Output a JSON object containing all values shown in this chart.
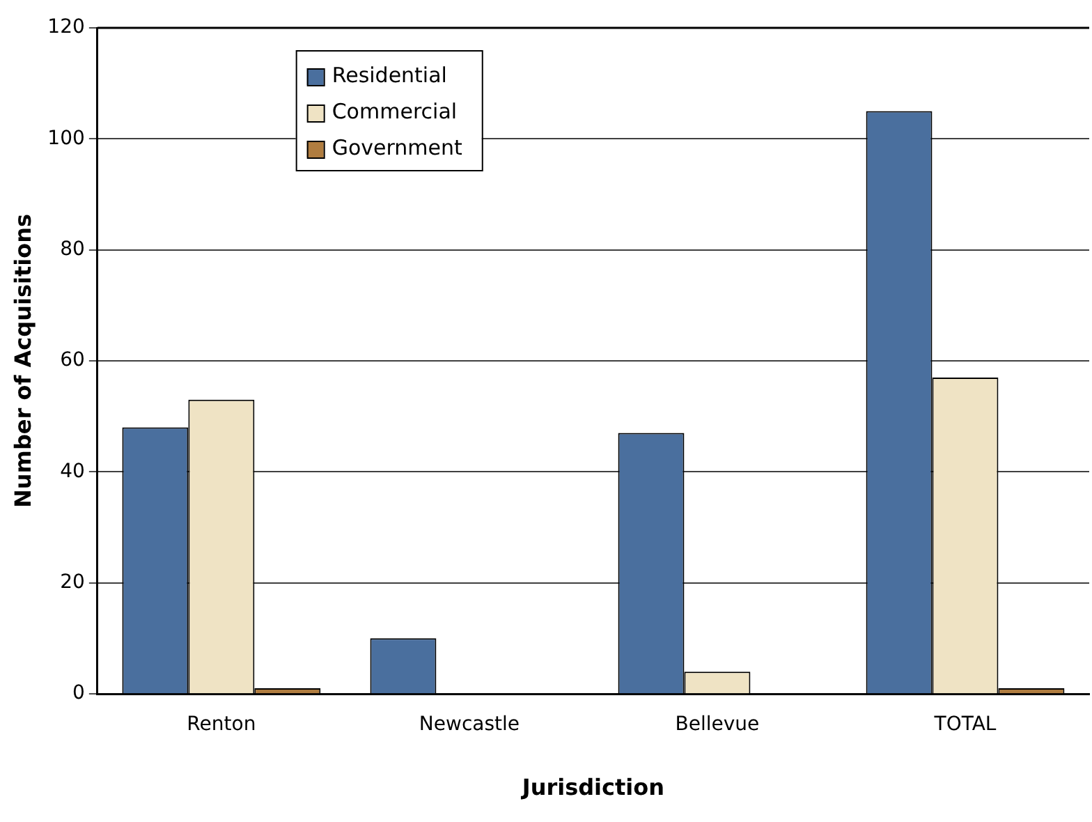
{
  "chart_data": {
    "type": "bar",
    "xlabel": "Jurisdiction",
    "ylabel": "Number of Acquisitions",
    "categories": [
      "Renton",
      "Newcastle",
      "Bellevue",
      "TOTAL"
    ],
    "series": [
      {
        "name": "Residential",
        "color": "#4a6f9e",
        "values": [
          48,
          10,
          47,
          105
        ]
      },
      {
        "name": "Commercial",
        "color": "#efe3c4",
        "values": [
          53,
          0,
          4,
          57
        ]
      },
      {
        "name": "Government",
        "color": "#b07d40",
        "values": [
          1,
          0,
          0,
          1
        ]
      }
    ],
    "ylim": [
      0,
      120
    ],
    "yticks": [
      0,
      20,
      40,
      60,
      80,
      100,
      120
    ],
    "grid": "y",
    "legend": "top left"
  }
}
